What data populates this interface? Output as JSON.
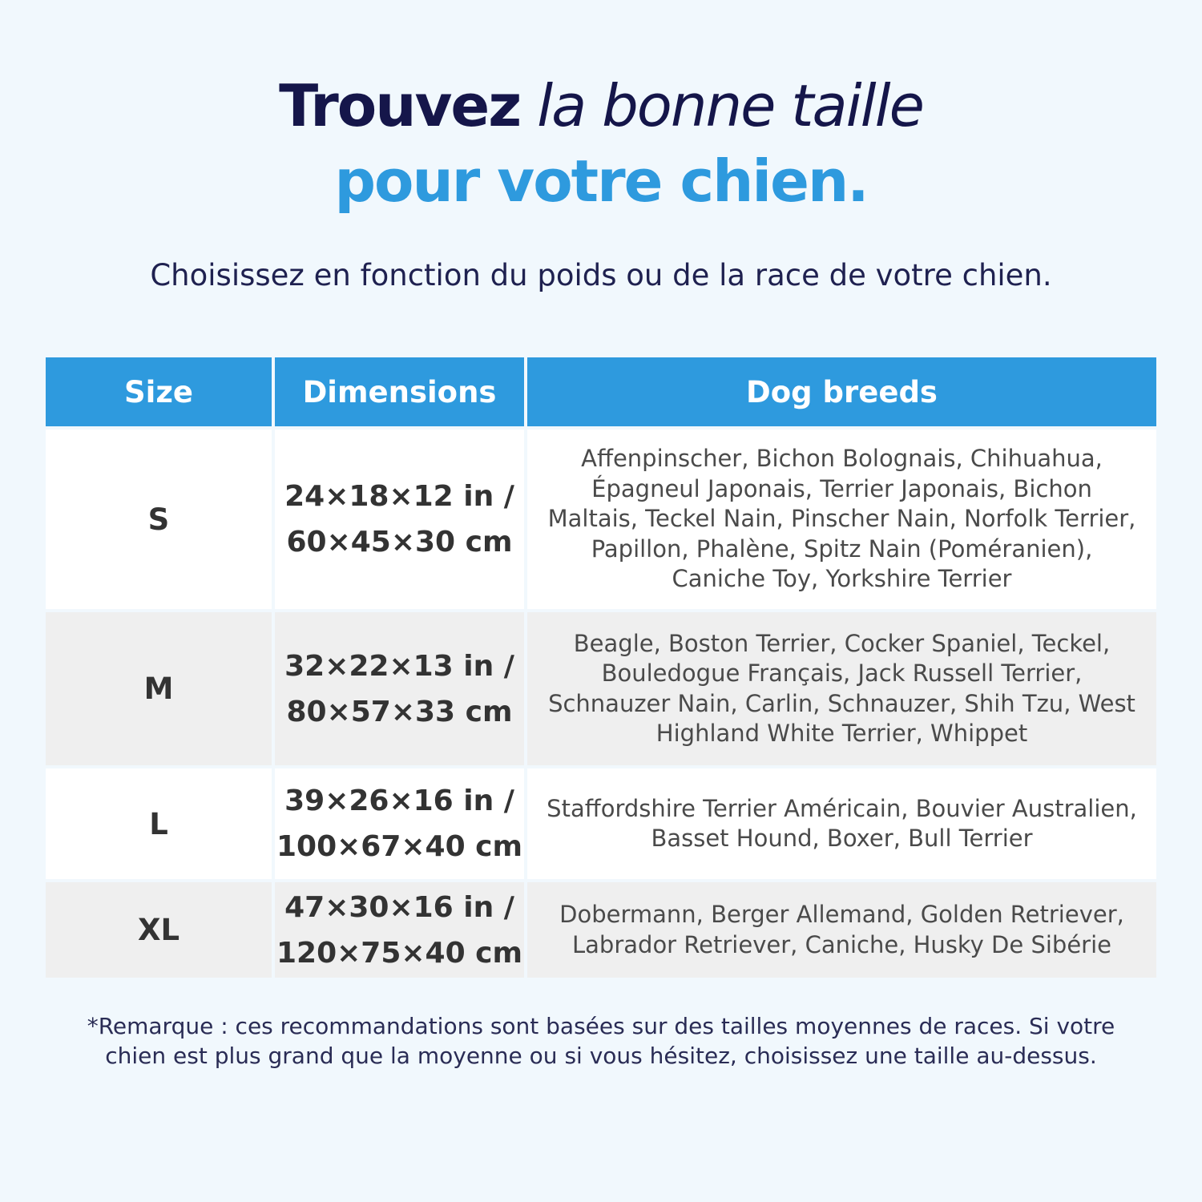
{
  "heading": {
    "bold": "Trouvez",
    "italic": "la bonne taille",
    "line2": "pour votre chien."
  },
  "subtitle": "Choisissez en fonction du poids ou de la race de votre chien.",
  "table": {
    "headers": [
      "Size",
      "Dimensions",
      "Dog breeds"
    ],
    "rows": [
      {
        "size": "S",
        "dim_in": "24×18×12 in /",
        "dim_cm": "60×45×30 cm",
        "breeds": "Affenpinscher, Bichon Bolognais, Chihuahua, Épagneul Japonais, Terrier Japonais, Bichon Maltais, Teckel Nain, Pinscher Nain, Norfolk Terrier, Papillon, Phalène, Spitz Nain (Poméranien), Caniche Toy, Yorkshire Terrier"
      },
      {
        "size": "M",
        "dim_in": "32×22×13 in /",
        "dim_cm": "80×57×33 cm",
        "breeds": "Beagle, Boston Terrier, Cocker Spaniel, Teckel, Bouledogue Français, Jack Russell Terrier, Schnauzer Nain, Carlin, Schnauzer, Shih Tzu, West Highland White Terrier, Whippet"
      },
      {
        "size": "L",
        "dim_in": "39×26×16 in /",
        "dim_cm": "100×67×40 cm",
        "breeds": "Staffordshire Terrier Américain, Bouvier Australien, Basset Hound, Boxer, Bull Terrier"
      },
      {
        "size": "XL",
        "dim_in": "47×30×16 in /",
        "dim_cm": "120×75×40 cm",
        "breeds": "Dobermann, Berger Allemand, Golden Retriever, Labrador Retriever, Caniche, Husky De Sibérie"
      }
    ]
  },
  "note": "*Remarque : ces recommandations sont basées sur des tailles moyennes de races. Si votre chien est plus grand que la moyenne ou si vous hésitez, choisissez une taille au-dessus.",
  "colors": {
    "accent": "#2e9ade",
    "navy": "#15164a"
  }
}
